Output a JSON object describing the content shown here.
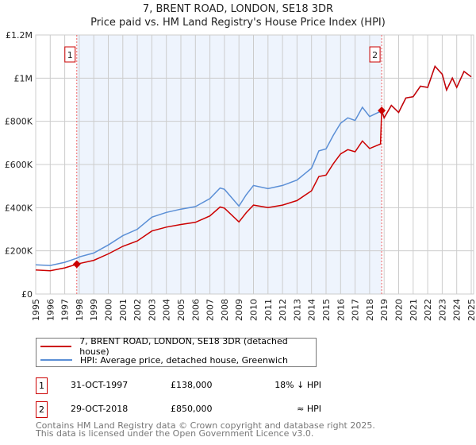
{
  "chart_data": {
    "type": "line",
    "title": "7, BRENT ROAD, LONDON, SE18 3DR",
    "subtitle": "Price paid vs. HM Land Registry's House Price Index (HPI)",
    "xlim": [
      1995,
      2025
    ],
    "ylim": [
      0,
      1200000
    ],
    "x_ticks": [
      "1995",
      "1996",
      "1997",
      "1998",
      "1999",
      "2000",
      "2001",
      "2002",
      "2003",
      "2004",
      "2005",
      "2006",
      "2007",
      "2008",
      "2009",
      "2010",
      "2011",
      "2012",
      "2013",
      "2014",
      "2015",
      "2016",
      "2017",
      "2018",
      "2019",
      "2020",
      "2021",
      "2022",
      "2023",
      "2024",
      "2025"
    ],
    "y_ticks": [
      {
        "v": 0,
        "label": "£0"
      },
      {
        "v": 200000,
        "label": "£200K"
      },
      {
        "v": 400000,
        "label": "£400K"
      },
      {
        "v": 600000,
        "label": "£600K"
      },
      {
        "v": 800000,
        "label": "£800K"
      },
      {
        "v": 1000000,
        "label": "£1M"
      },
      {
        "v": 1200000,
        "label": "£1.2M"
      }
    ],
    "grid": true,
    "ownership_shade": [
      1997.83,
      2018.83
    ],
    "series": [
      {
        "name": "7, BRENT ROAD, LONDON, SE18 3DR (detached house)",
        "color": "#cc0000",
        "x": [
          1995,
          1996,
          1997,
          1997.83,
          1998,
          1999,
          2000,
          2001,
          2002,
          2003,
          2004,
          2005,
          2006,
          2007,
          2007.7,
          2008,
          2009,
          2009.5,
          2010,
          2011,
          2012,
          2013,
          2014,
          2014.5,
          2015,
          2015.5,
          2016,
          2016.5,
          2017,
          2017.5,
          2018,
          2018.75,
          2018.83,
          2019,
          2019.5,
          2020,
          2020.5,
          2021,
          2021.5,
          2022,
          2022.5,
          2023,
          2023.3,
          2023.7,
          2024,
          2024.5,
          2025
        ],
        "y": [
          111000,
          108000,
          121000,
          138000,
          141000,
          156000,
          186000,
          221000,
          246000,
          292000,
          310000,
          322000,
          332000,
          362000,
          403000,
          398000,
          334000,
          377000,
          412000,
          400000,
          412000,
          433000,
          478000,
          544000,
          551000,
          604000,
          649000,
          669000,
          659000,
          709000,
          674000,
          695000,
          850000,
          816000,
          874000,
          841000,
          908000,
          914000,
          963000,
          957000,
          1055000,
          1018000,
          945000,
          1000000,
          957000,
          1031000,
          1006000
        ]
      },
      {
        "name": "HPI: Average price, detached house, Greenwich",
        "color": "#5b8fd6",
        "x": [
          1995,
          1996,
          1997,
          1997.83,
          1998,
          1999,
          2000,
          2001,
          2002,
          2003,
          2004,
          2005,
          2006,
          2007,
          2007.7,
          2008,
          2009,
          2009.5,
          2010,
          2011,
          2012,
          2013,
          2014,
          2014.5,
          2015,
          2015.5,
          2016,
          2016.5,
          2017,
          2017.5,
          2018,
          2018.83,
          2019,
          2019.5,
          2020,
          2020.5,
          2021,
          2021.5,
          2022,
          2022.5,
          2023,
          2023.3,
          2023.7,
          2024,
          2024.5,
          2025
        ],
        "y": [
          135000,
          132000,
          147000,
          166000,
          172000,
          190000,
          227000,
          270000,
          300000,
          356000,
          378000,
          393000,
          405000,
          442000,
          491000,
          485000,
          407000,
          460000,
          503000,
          488000,
          503000,
          528000,
          583000,
          663000,
          672000,
          736000,
          791000,
          816000,
          804000,
          865000,
          822000,
          849000,
          816000,
          874000,
          841000,
          908000,
          914000,
          963000,
          957000,
          1055000,
          1018000,
          945000,
          1000000,
          957000,
          1031000,
          1006000
        ]
      }
    ],
    "sales": [
      {
        "n": "1",
        "x": 1997.83,
        "y": 138000,
        "date": "31-OCT-1997",
        "price": "£138,000",
        "vs": "18% ↓ HPI"
      },
      {
        "n": "2",
        "x": 2018.83,
        "y": 850000,
        "date": "29-OCT-2018",
        "price": "£850,000",
        "vs": "≈ HPI"
      }
    ]
  },
  "footer": {
    "line1": "Contains HM Land Registry data © Crown copyright and database right 2025.",
    "line2": "This data is licensed under the Open Government Licence v3.0."
  }
}
